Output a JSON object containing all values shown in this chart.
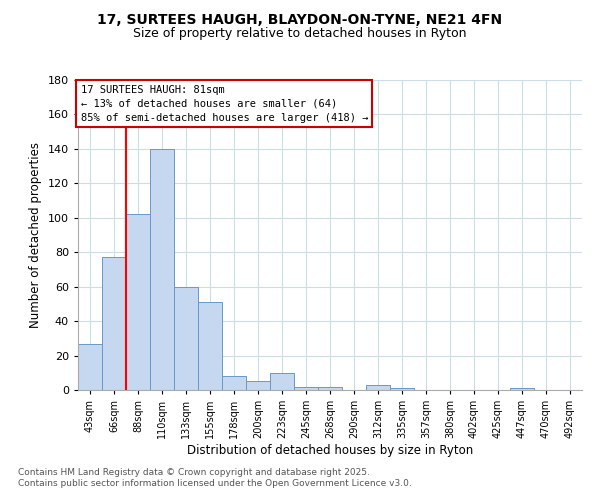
{
  "title_line1": "17, SURTEES HAUGH, BLAYDON-ON-TYNE, NE21 4FN",
  "title_line2": "Size of property relative to detached houses in Ryton",
  "xlabel": "Distribution of detached houses by size in Ryton",
  "ylabel": "Number of detached properties",
  "categories": [
    "43sqm",
    "66sqm",
    "88sqm",
    "110sqm",
    "133sqm",
    "155sqm",
    "178sqm",
    "200sqm",
    "223sqm",
    "245sqm",
    "268sqm",
    "290sqm",
    "312sqm",
    "335sqm",
    "357sqm",
    "380sqm",
    "402sqm",
    "425sqm",
    "447sqm",
    "470sqm",
    "492sqm"
  ],
  "values": [
    27,
    77,
    102,
    140,
    60,
    51,
    8,
    5,
    10,
    2,
    2,
    0,
    3,
    1,
    0,
    0,
    0,
    0,
    1,
    0,
    0
  ],
  "bar_color": "#c5d8f0",
  "bar_edge_color": "#6699cc",
  "red_line_x": 1.5,
  "annotation_text": "17 SURTEES HAUGH: 81sqm\n← 13% of detached houses are smaller (64)\n85% of semi-detached houses are larger (418) →",
  "annotation_box_color": "#ffffff",
  "annotation_box_edge_color": "#cc0000",
  "ylim": [
    0,
    180
  ],
  "yticks": [
    0,
    20,
    40,
    60,
    80,
    100,
    120,
    140,
    160,
    180
  ],
  "footer_line1": "Contains HM Land Registry data © Crown copyright and database right 2025.",
  "footer_line2": "Contains public sector information licensed under the Open Government Licence v3.0.",
  "background_color": "#ffffff",
  "grid_color": "#ccdde8"
}
